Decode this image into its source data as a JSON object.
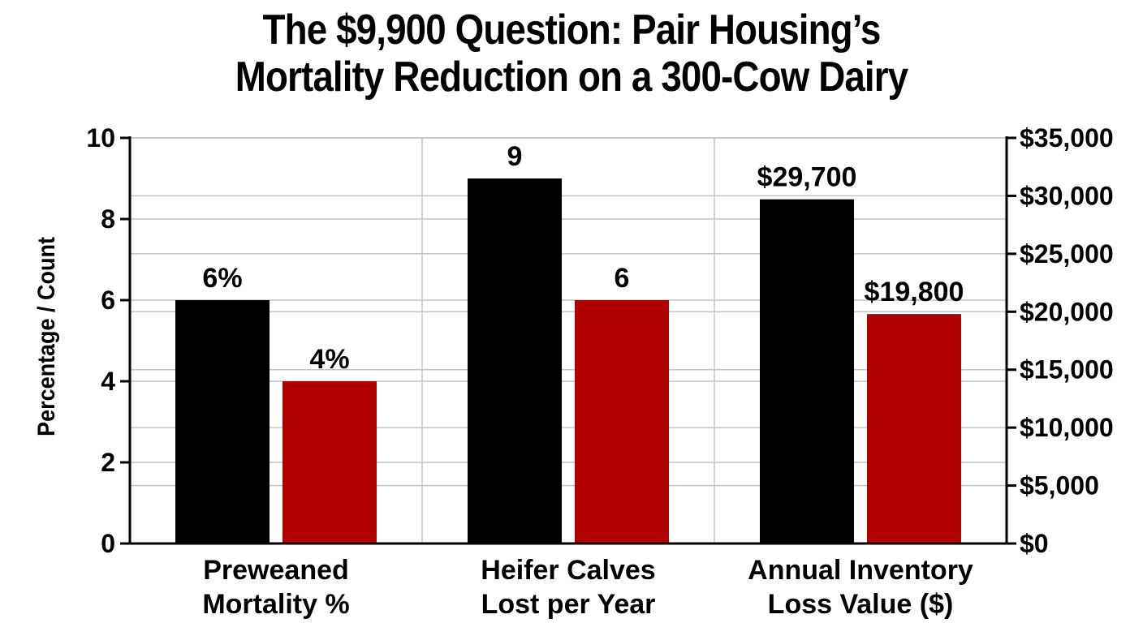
{
  "chart_data": {
    "type": "bar",
    "title_lines": [
      "The $9,900 Question: Pair Housing’s",
      "Mortality Reduction on a 300-Cow Dairy"
    ],
    "ylabel": "Percentage / Count",
    "ylim": [
      0,
      10
    ],
    "y_ticks": [
      "0",
      "2",
      "4",
      "6",
      "8",
      "10"
    ],
    "y2lim": [
      0,
      35000
    ],
    "y2_ticks": [
      "$0",
      "$5,000",
      "$10,000",
      "$15,000",
      "$20,000",
      "$25,000",
      "$30,000",
      "$35,000"
    ],
    "grid": true,
    "categories": [
      [
        "Preweaned",
        "Mortality %"
      ],
      [
        "Heifer Calves",
        "Lost per Year"
      ],
      [
        "Annual Inventory",
        "Loss Value ($)"
      ]
    ],
    "series": [
      {
        "color": "#000000",
        "values": [
          6,
          9,
          29700
        ],
        "axis": [
          "left",
          "left",
          "right"
        ],
        "labels": [
          "6%",
          "9",
          "$29,700"
        ]
      },
      {
        "color": "#b00000",
        "values": [
          4,
          6,
          19800
        ],
        "axis": [
          "left",
          "left",
          "right"
        ],
        "labels": [
          "4%",
          "6",
          "$19,800"
        ]
      }
    ]
  }
}
